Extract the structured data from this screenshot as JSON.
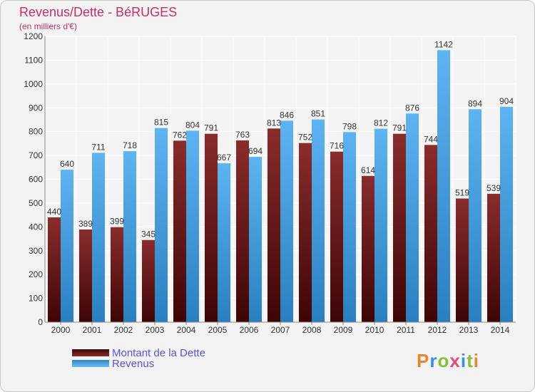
{
  "header": {
    "title": "Revenus/Dette - BéRUGES",
    "subtitle": "(en milliers d'€)"
  },
  "colors": {
    "dette": "#7a2323",
    "revenus": "#4aa3e6",
    "title": "#c0306a",
    "legend_text": "#5a55d8"
  },
  "chart_data": {
    "type": "bar",
    "categories": [
      "2000",
      "2001",
      "2002",
      "2003",
      "2004",
      "2005",
      "2006",
      "2007",
      "2008",
      "2009",
      "2010",
      "2011",
      "2012",
      "2013",
      "2014"
    ],
    "series": [
      {
        "name": "Montant de la Dette",
        "values": [
          440,
          389,
          399,
          345,
          762,
          791,
          763,
          813,
          752,
          716,
          614,
          791,
          744,
          519,
          539
        ]
      },
      {
        "name": "Revenus",
        "values": [
          640,
          711,
          718,
          815,
          804,
          667,
          694,
          846,
          851,
          798,
          812,
          876,
          1142,
          894,
          904
        ]
      }
    ],
    "ylim": [
      0,
      1200
    ],
    "yticks": [
      0,
      100,
      200,
      300,
      400,
      500,
      600,
      700,
      800,
      900,
      1000,
      1100,
      1200
    ],
    "grid": true,
    "legend_position": "bottom-left"
  },
  "legend": {
    "items": [
      {
        "label": "Montant de la Dette"
      },
      {
        "label": "Revenus"
      }
    ]
  },
  "logo": {
    "text": "Proxiti"
  }
}
